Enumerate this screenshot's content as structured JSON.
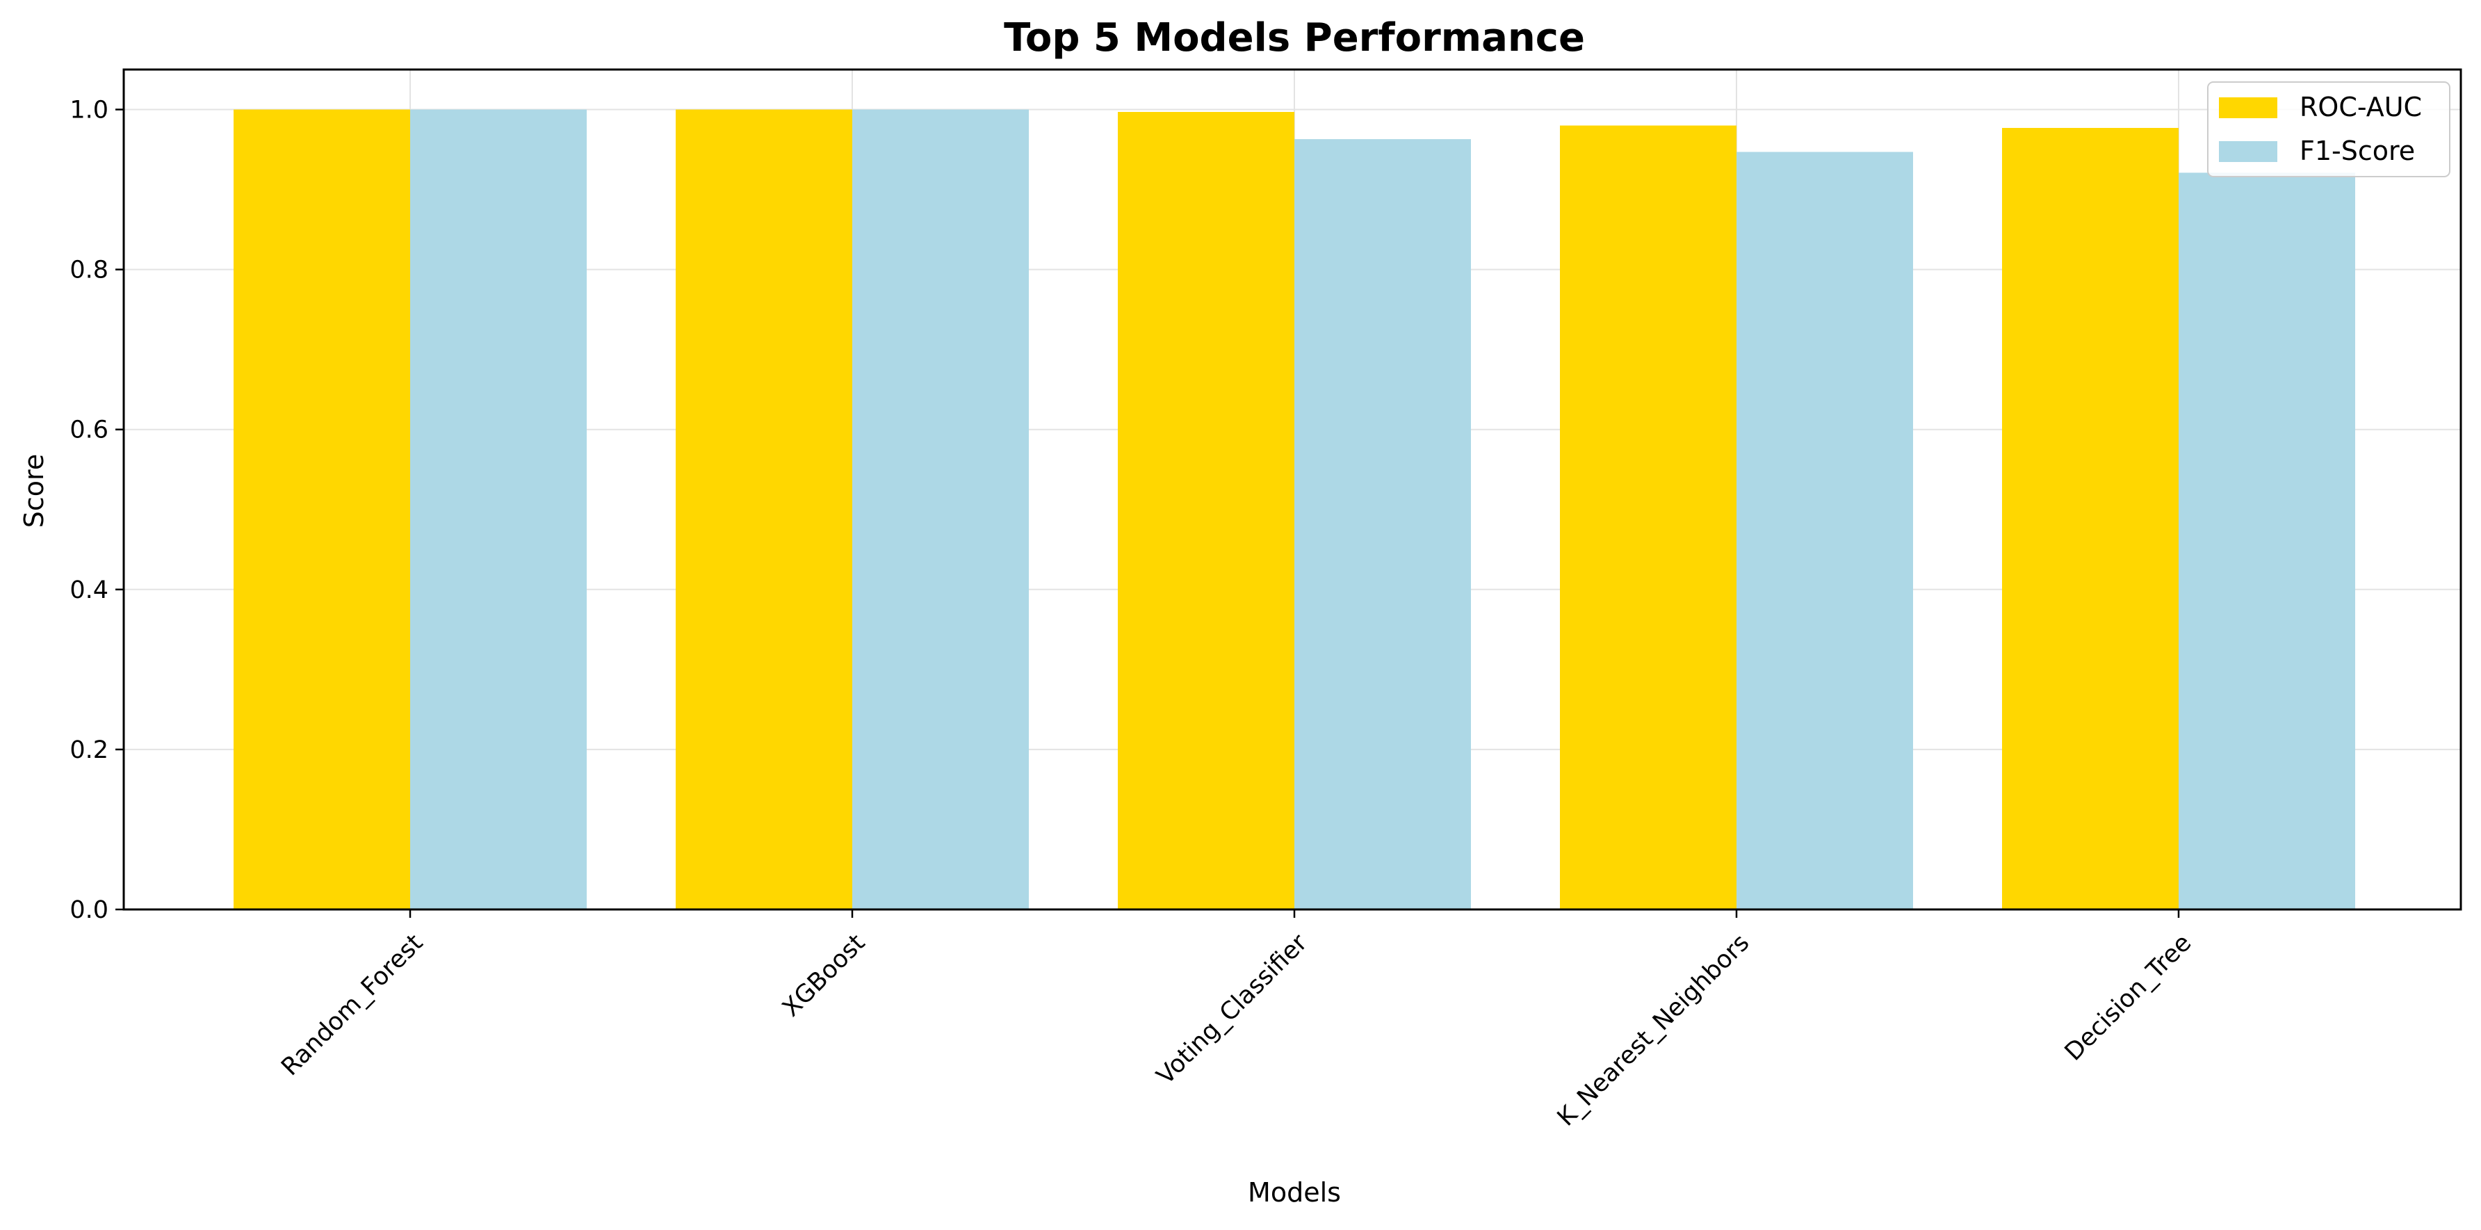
{
  "chart_data": {
    "type": "bar",
    "title": "Top 5 Models Performance",
    "xlabel": "Models",
    "ylabel": "Score",
    "categories": [
      "Random_Forest",
      "XGBoost",
      "Voting_Classifier",
      "K_Nearest_Neighbors",
      "Decision_Tree"
    ],
    "series": [
      {
        "name": "ROC-AUC",
        "color": "#FFD700",
        "values": [
          1.0,
          1.0,
          0.997,
          0.98,
          0.977
        ]
      },
      {
        "name": "F1-Score",
        "color": "#ADD8E6",
        "values": [
          1.0,
          1.0,
          0.963,
          0.947,
          0.921
        ]
      }
    ],
    "ylim": [
      0,
      1.05
    ],
    "yticks": [
      "0.0",
      "0.2",
      "0.4",
      "0.6",
      "0.8",
      "1.0"
    ],
    "ytick_values": [
      0,
      0.2,
      0.4,
      0.6,
      0.8,
      1.0
    ],
    "grid": true,
    "legend_position": "top-right",
    "xtick_rotation": "45 degrees"
  }
}
